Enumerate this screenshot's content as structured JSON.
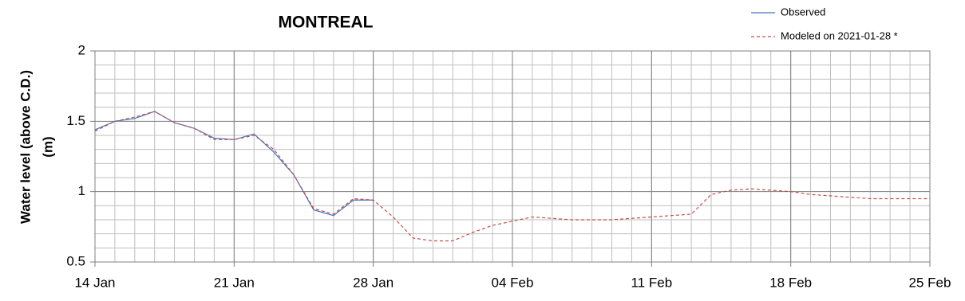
{
  "chart_data": {
    "type": "line",
    "title": "MONTREAL",
    "ylabel": [
      "Water level (above C.D.)",
      "(m)"
    ],
    "categories": [
      "14 Jan",
      null,
      null,
      null,
      null,
      null,
      null,
      "21 Jan",
      null,
      null,
      null,
      null,
      null,
      null,
      "28 Jan",
      null,
      null,
      null,
      null,
      null,
      null,
      "04 Feb",
      null,
      null,
      null,
      null,
      null,
      null,
      "11 Feb",
      null,
      null,
      null,
      null,
      null,
      null,
      "18 Feb",
      null,
      null,
      null,
      null,
      null,
      null,
      "25 Feb"
    ],
    "series": [
      {
        "name": "Observed",
        "color": "#4472c4",
        "dash": false,
        "values": [
          1.44,
          1.5,
          1.52,
          1.57,
          1.49,
          1.45,
          1.38,
          1.37,
          1.41,
          1.28,
          1.12,
          0.87,
          0.83,
          0.94,
          0.94,
          null,
          null,
          null,
          null,
          null,
          null,
          null,
          null,
          null,
          null,
          null,
          null,
          null,
          null,
          null,
          null,
          null,
          null,
          null,
          null,
          null,
          null,
          null,
          null,
          null,
          null,
          null,
          null
        ]
      },
      {
        "name": "Modeled on 2021-01-28 *",
        "color": "#c0504d",
        "dash": true,
        "values": [
          1.43,
          1.5,
          1.53,
          1.57,
          1.49,
          1.45,
          1.37,
          1.37,
          1.4,
          1.3,
          1.12,
          0.88,
          0.84,
          0.95,
          0.94,
          0.82,
          0.67,
          0.65,
          0.65,
          0.71,
          0.76,
          0.79,
          0.82,
          0.81,
          0.8,
          0.8,
          0.8,
          0.81,
          0.82,
          0.83,
          0.84,
          0.98,
          1.01,
          1.02,
          1.01,
          1.0,
          0.98,
          0.97,
          0.96,
          0.95,
          0.95,
          0.95,
          0.95
        ]
      }
    ],
    "ylim": [
      0.5,
      2
    ],
    "yticks": [
      0.5,
      1,
      1.5,
      2
    ],
    "y_minor_ticks": [
      0.6,
      0.7,
      0.8,
      0.9,
      1.1,
      1.2,
      1.3,
      1.4,
      1.6,
      1.7,
      1.8,
      1.9
    ],
    "grid": true
  }
}
